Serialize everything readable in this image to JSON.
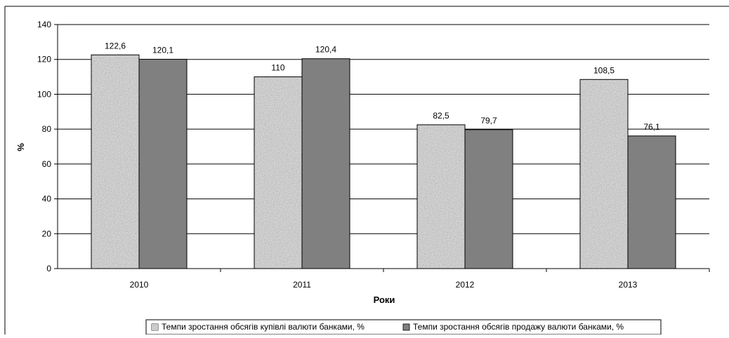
{
  "chart_data": {
    "type": "bar",
    "categories": [
      "2010",
      "2011",
      "2012",
      "2013"
    ],
    "series": [
      {
        "name": "Темпи зростання обсягів купівлі валюти банками, %",
        "values": [
          122.6,
          110,
          82.5,
          108.5
        ],
        "labels": [
          "122,6",
          "110",
          "82,5",
          "108,5"
        ],
        "fill": "speckled-gray"
      },
      {
        "name": "Темпи зростання обсягів продажу валюти банками, %",
        "values": [
          120.1,
          120.4,
          79.7,
          76.1
        ],
        "labels": [
          "120,1",
          "120,4",
          "79,7",
          "76,1"
        ],
        "fill": "#808080"
      }
    ],
    "xlabel": "Роки",
    "ylabel": "%",
    "ylim": [
      0,
      140
    ],
    "yticks": [
      "0",
      "20",
      "40",
      "60",
      "80",
      "100",
      "120",
      "140"
    ],
    "grid": true,
    "legend": "bottom"
  }
}
